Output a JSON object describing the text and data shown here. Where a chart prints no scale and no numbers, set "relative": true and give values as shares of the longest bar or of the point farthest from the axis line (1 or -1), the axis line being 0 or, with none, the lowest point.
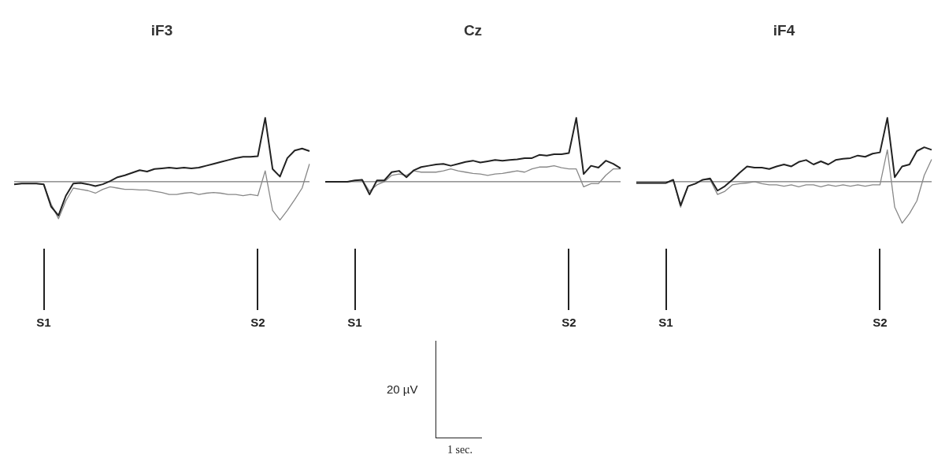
{
  "chart_data": [
    {
      "type": "line",
      "title": "iF3",
      "relative": true,
      "categories": [
        null,
        null,
        null,
        null,
        "S1",
        null,
        null,
        null,
        null,
        null,
        null,
        null,
        null,
        null,
        null,
        null,
        null,
        null,
        null,
        null,
        null,
        null,
        null,
        null,
        null,
        null,
        null,
        null,
        null,
        null,
        null,
        null,
        null,
        "S2",
        null,
        null,
        null,
        null,
        null,
        null,
        null
      ],
      "series": [
        {
          "color": "#222222",
          "values": [
            -0.04,
            -0.03,
            -0.03,
            -0.03,
            -0.04,
            -0.39,
            -0.53,
            -0.22,
            -0.03,
            -0.02,
            -0.04,
            -0.07,
            -0.04,
            0.01,
            0.07,
            0.1,
            0.14,
            0.18,
            0.16,
            0.2,
            0.21,
            0.22,
            0.21,
            0.22,
            0.21,
            0.22,
            0.25,
            0.28,
            0.31,
            0.34,
            0.37,
            0.39,
            0.39,
            0.4,
            1,
            0.2,
            0.08,
            0.37,
            0.49,
            0.52,
            0.48
          ]
        },
        {
          "color": "#888888",
          "values": [
            -0.04,
            -0.03,
            -0.03,
            -0.03,
            -0.04,
            -0.35,
            -0.58,
            -0.3,
            -0.1,
            -0.12,
            -0.14,
            -0.18,
            -0.12,
            -0.08,
            -0.1,
            -0.12,
            -0.12,
            -0.13,
            -0.13,
            -0.15,
            -0.17,
            -0.2,
            -0.2,
            -0.18,
            -0.17,
            -0.2,
            -0.18,
            -0.17,
            -0.18,
            -0.2,
            -0.2,
            -0.22,
            -0.2,
            -0.22,
            0.17,
            -0.45,
            -0.6,
            -0.45,
            -0.28,
            -0.1,
            0.28
          ]
        }
      ]
    },
    {
      "type": "line",
      "title": "Cz",
      "relative": true,
      "annotations": [
        "20 µV",
        "1 sec."
      ],
      "categories": [
        null,
        null,
        null,
        null,
        "S1",
        null,
        null,
        null,
        null,
        null,
        null,
        null,
        null,
        null,
        null,
        null,
        null,
        null,
        null,
        null,
        null,
        null,
        null,
        null,
        null,
        null,
        null,
        null,
        null,
        null,
        null,
        null,
        null,
        "S2",
        null,
        null,
        null,
        null,
        null,
        null,
        null
      ],
      "series": [
        {
          "color": "#222222",
          "values": [
            0,
            0,
            0,
            0,
            0.02,
            0.03,
            -0.2,
            0.02,
            0.02,
            0.15,
            0.17,
            0.07,
            0.18,
            0.23,
            0.25,
            0.27,
            0.28,
            0.25,
            0.28,
            0.31,
            0.33,
            0.3,
            0.32,
            0.34,
            0.33,
            0.34,
            0.35,
            0.37,
            0.37,
            0.42,
            0.41,
            0.43,
            0.43,
            0.45,
            1,
            0.12,
            0.25,
            0.22,
            0.33,
            0.28,
            0.21
          ]
        },
        {
          "color": "#888888",
          "values": [
            0,
            0,
            0,
            0,
            0.02,
            0.03,
            -0.15,
            -0.05,
            0,
            0.1,
            0.12,
            0.1,
            0.17,
            0.15,
            0.15,
            0.15,
            0.17,
            0.2,
            0.17,
            0.15,
            0.13,
            0.12,
            0.1,
            0.12,
            0.13,
            0.15,
            0.17,
            0.15,
            0.2,
            0.23,
            0.23,
            0.25,
            0.22,
            0.2,
            0.2,
            -0.08,
            -0.03,
            -0.03,
            0.1,
            0.2,
            0.2
          ]
        }
      ]
    },
    {
      "type": "line",
      "title": "iF4",
      "relative": true,
      "categories": [
        null,
        null,
        null,
        null,
        "S1",
        null,
        null,
        null,
        null,
        null,
        null,
        null,
        null,
        null,
        null,
        null,
        null,
        null,
        null,
        null,
        null,
        null,
        null,
        null,
        null,
        null,
        null,
        null,
        null,
        null,
        null,
        null,
        null,
        "S2",
        null,
        null,
        null,
        null,
        null,
        null,
        null
      ],
      "series": [
        {
          "color": "#222222",
          "values": [
            -0.02,
            -0.02,
            -0.02,
            -0.02,
            -0.02,
            0.03,
            -0.37,
            -0.07,
            -0.03,
            0.03,
            0.05,
            -0.14,
            -0.07,
            0.03,
            0.14,
            0.24,
            0.22,
            0.22,
            0.2,
            0.24,
            0.27,
            0.24,
            0.31,
            0.34,
            0.27,
            0.32,
            0.27,
            0.34,
            0.36,
            0.37,
            0.41,
            0.39,
            0.44,
            0.46,
            1,
            0.07,
            0.24,
            0.27,
            0.48,
            0.54,
            0.5
          ]
        },
        {
          "color": "#888888",
          "values": [
            -0.02,
            -0.02,
            -0.02,
            -0.02,
            -0.02,
            0.03,
            -0.4,
            -0.07,
            -0.03,
            0.03,
            0.03,
            -0.2,
            -0.15,
            -0.05,
            -0.03,
            -0.02,
            0,
            -0.03,
            -0.05,
            -0.05,
            -0.07,
            -0.05,
            -0.08,
            -0.05,
            -0.05,
            -0.08,
            -0.05,
            -0.07,
            -0.05,
            -0.07,
            -0.05,
            -0.07,
            -0.05,
            -0.05,
            0.5,
            -0.4,
            -0.65,
            -0.5,
            -0.3,
            0.1,
            0.35
          ]
        }
      ]
    }
  ]
}
